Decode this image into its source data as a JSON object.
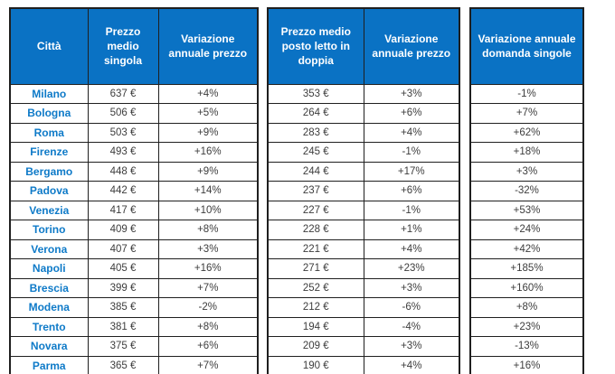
{
  "colors": {
    "header_bg": "#0A72C4",
    "header_text": "#FFFFFF",
    "city_text": "#0E7AC8",
    "value_text": "#3D3D3D",
    "border": "#1F1F1F",
    "page_bg": "#FFFFFF"
  },
  "single_room_table": {
    "headers": {
      "city": "Città",
      "avg_price": "Prezzo medio singola",
      "price_variation": "Variazione annuale prezzo"
    },
    "rows": [
      {
        "city": "Milano",
        "price": "637 €",
        "variation": "+4%"
      },
      {
        "city": "Bologna",
        "price": "506 €",
        "variation": "+5%"
      },
      {
        "city": "Roma",
        "price": "503 €",
        "variation": "+9%"
      },
      {
        "city": "Firenze",
        "price": "493 €",
        "variation": "+16%"
      },
      {
        "city": "Bergamo",
        "price": "448 €",
        "variation": "+9%"
      },
      {
        "city": "Padova",
        "price": "442 €",
        "variation": "+14%"
      },
      {
        "city": "Venezia",
        "price": "417 €",
        "variation": "+10%"
      },
      {
        "city": "Torino",
        "price": "409 €",
        "variation": "+8%"
      },
      {
        "city": "Verona",
        "price": "407 €",
        "variation": "+3%"
      },
      {
        "city": "Napoli",
        "price": "405 €",
        "variation": "+16%"
      },
      {
        "city": "Brescia",
        "price": "399 €",
        "variation": "+7%"
      },
      {
        "city": "Modena",
        "price": "385 €",
        "variation": "-2%"
      },
      {
        "city": "Trento",
        "price": "381 €",
        "variation": "+8%"
      },
      {
        "city": "Novara",
        "price": "375 €",
        "variation": "+6%"
      },
      {
        "city": "Parma",
        "price": "365 €",
        "variation": "+7%"
      }
    ]
  },
  "double_bed_table": {
    "headers": {
      "avg_price": "Prezzo medio posto letto in doppia",
      "price_variation": "Variazione annuale prezzo"
    },
    "rows": [
      {
        "price": "353 €",
        "variation": "+3%"
      },
      {
        "price": "264 €",
        "variation": "+6%"
      },
      {
        "price": "283 €",
        "variation": "+4%"
      },
      {
        "price": "245 €",
        "variation": "-1%"
      },
      {
        "price": "244 €",
        "variation": "+17%"
      },
      {
        "price": "237 €",
        "variation": "+6%"
      },
      {
        "price": "227 €",
        "variation": "-1%"
      },
      {
        "price": "228 €",
        "variation": "+1%"
      },
      {
        "price": "221 €",
        "variation": "+4%"
      },
      {
        "price": "271 €",
        "variation": "+23%"
      },
      {
        "price": "252 €",
        "variation": "+3%"
      },
      {
        "price": "212 €",
        "variation": "-6%"
      },
      {
        "price": "194 €",
        "variation": "-4%"
      },
      {
        "price": "209 €",
        "variation": "+3%"
      },
      {
        "price": "190 €",
        "variation": "+4%"
      }
    ]
  },
  "demand_table": {
    "header": "Variazione annuale domanda singole",
    "rows": [
      {
        "variation": "-1%"
      },
      {
        "variation": "+7%"
      },
      {
        "variation": "+62%"
      },
      {
        "variation": "+18%"
      },
      {
        "variation": "+3%"
      },
      {
        "variation": "-32%"
      },
      {
        "variation": "+53%"
      },
      {
        "variation": "+24%"
      },
      {
        "variation": "+42%"
      },
      {
        "variation": "+185%"
      },
      {
        "variation": "+160%"
      },
      {
        "variation": "+8%"
      },
      {
        "variation": "+23%"
      },
      {
        "variation": "-13%"
      },
      {
        "variation": "+16%"
      }
    ]
  }
}
